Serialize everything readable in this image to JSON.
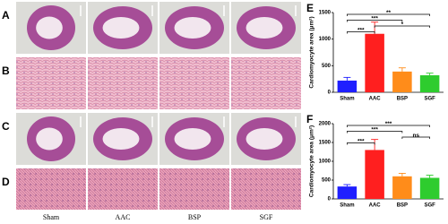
{
  "panel_labels": [
    "A",
    "B",
    "C",
    "D"
  ],
  "column_labels": [
    "Sham",
    "AAC",
    "BSP",
    "SGF"
  ],
  "chart_data": [
    {
      "type": "bar",
      "panel_label": "E",
      "ylabel": "Cardiomyocyte area (μm²)",
      "categories": [
        "Sham",
        "AAC",
        "BSP",
        "SGF"
      ],
      "values": [
        220,
        1100,
        390,
        320
      ],
      "errors": [
        60,
        220,
        70,
        40
      ],
      "colors": [
        "#1f1fff",
        "#ff1f1f",
        "#ff8c1a",
        "#2ecc2e"
      ],
      "ylim": [
        0,
        1500
      ],
      "yticks": [
        0,
        500,
        1000,
        1500
      ],
      "annotations": [
        {
          "label": "***",
          "from": 0,
          "to": 1
        },
        {
          "label": "*",
          "from": 1,
          "to": 3
        },
        {
          "label": "***",
          "from": 0,
          "to": 2
        },
        {
          "label": "**",
          "from": 0,
          "to": 3
        }
      ]
    },
    {
      "type": "bar",
      "panel_label": "F",
      "ylabel": "Cardiomyocyte area (μm²)",
      "categories": [
        "Sham",
        "AAC",
        "BSP",
        "SGF"
      ],
      "values": [
        330,
        1300,
        600,
        560
      ],
      "errors": [
        50,
        280,
        80,
        70
      ],
      "colors": [
        "#1f1fff",
        "#ff1f1f",
        "#ff8c1a",
        "#2ecc2e"
      ],
      "ylim": [
        0,
        2000
      ],
      "yticks": [
        0,
        500,
        1000,
        1500,
        2000
      ],
      "annotations": [
        {
          "label": "***",
          "from": 0,
          "to": 1
        },
        {
          "label": "ns",
          "from": 2,
          "to": 3
        },
        {
          "label": "***",
          "from": 0,
          "to": 2
        },
        {
          "label": "***",
          "from": 0,
          "to": 3
        }
      ]
    }
  ]
}
